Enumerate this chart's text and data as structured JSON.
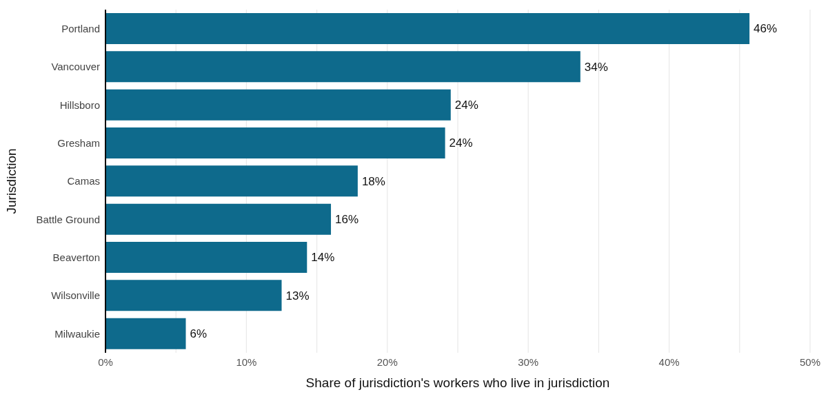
{
  "chart_data": {
    "type": "bar",
    "orientation": "horizontal",
    "categories": [
      "Portland",
      "Vancouver",
      "Hillsboro",
      "Gresham",
      "Camas",
      "Battle Ground",
      "Beaverton",
      "Wilsonville",
      "Milwaukie"
    ],
    "values": [
      45.7,
      33.7,
      24.5,
      24.1,
      17.9,
      16.0,
      14.3,
      12.5,
      5.7
    ],
    "value_labels": [
      "46%",
      "34%",
      "24%",
      "24%",
      "18%",
      "16%",
      "14%",
      "13%",
      "6%"
    ],
    "color": "#0e6a8c",
    "xlabel": "Share of jurisdiction's workers who live in jurisdiction",
    "ylabel": "Jurisdiction",
    "xlim": [
      0,
      50
    ],
    "xticks": [
      {
        "value": 0,
        "label": "0%"
      },
      {
        "value": 5,
        "label": null
      },
      {
        "value": 10,
        "label": "10%"
      },
      {
        "value": 15,
        "label": null
      },
      {
        "value": 20,
        "label": "20%"
      },
      {
        "value": 25,
        "label": null
      },
      {
        "value": 30,
        "label": "30%"
      },
      {
        "value": 35,
        "label": null
      },
      {
        "value": 40,
        "label": "40%"
      },
      {
        "value": 45,
        "label": null
      },
      {
        "value": 50,
        "label": "50%"
      }
    ],
    "grid": "x"
  }
}
